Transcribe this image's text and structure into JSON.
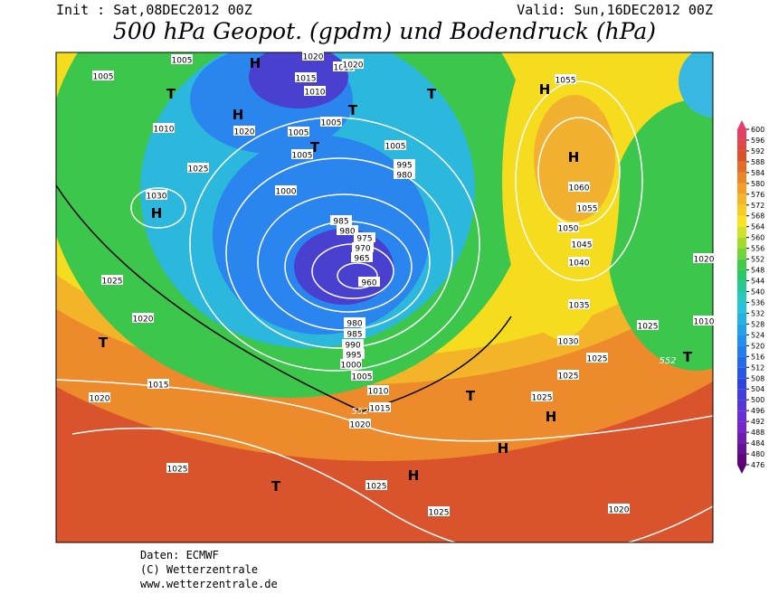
{
  "header": {
    "init": "Init : Sat,08DEC2012 00Z",
    "valid": "Valid: Sun,16DEC2012 00Z",
    "title": "500 hPa Geopot. (gpdm) und Bodendruck (hPa)"
  },
  "map": {
    "isobar_labels": [
      "1005",
      "1005",
      "1020",
      "1015",
      "1020",
      "1015",
      "1010",
      "1020",
      "1010",
      "1005",
      "1005",
      "1005",
      "1005",
      "1025",
      "1030",
      "995",
      "980",
      "1000",
      "985",
      "980",
      "975",
      "970",
      "965",
      "960",
      "1025",
      "1020",
      "980",
      "985",
      "990",
      "995",
      "1000",
      "1005",
      "1010",
      "1015",
      "1020",
      "1015",
      "1020",
      "1025",
      "1025",
      "1025",
      "1020",
      "1025",
      "1025",
      "1025",
      "1030",
      "1035",
      "1040",
      "1045",
      "1050",
      "1055",
      "1060",
      "1055",
      "1025",
      "1020",
      "1010"
    ],
    "geopotential_labels": [
      "552",
      "552"
    ],
    "pressure_centers": [
      "H",
      "T",
      "H",
      "T",
      "T",
      "H",
      "T",
      "H",
      "H",
      "T",
      "T",
      "H",
      "H",
      "H",
      "T",
      "T"
    ]
  },
  "colorbar": {
    "ticks": [
      476,
      480,
      484,
      488,
      492,
      496,
      500,
      504,
      508,
      512,
      516,
      520,
      524,
      528,
      532,
      536,
      540,
      544,
      548,
      552,
      556,
      560,
      564,
      568,
      572,
      576,
      580,
      584,
      588,
      592,
      596,
      600
    ]
  },
  "footer": {
    "source": "Daten: ECMWF",
    "copyright": "(C) Wetterzentrale",
    "url": "www.wetterzentrale.de"
  }
}
